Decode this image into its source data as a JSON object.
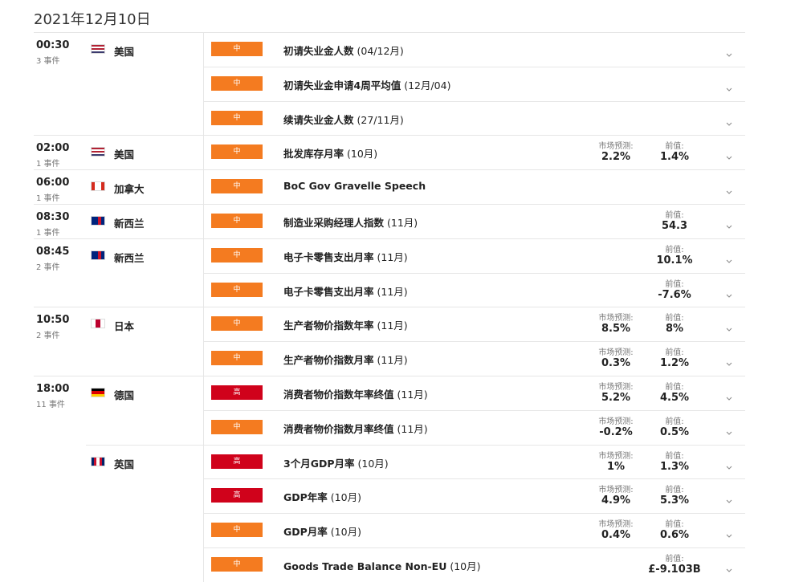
{
  "header": {
    "title": "2021年12月10日"
  },
  "groups": [
    {
      "time": "00:30",
      "count": "3 事件",
      "countries": [
        {
          "name": "美国",
          "flag": {
            "colors": [
              "#b22234",
              "#ffffff",
              "#b22234",
              "#ffffff",
              "#3c3b6e"
            ],
            "direction": "column"
          },
          "events": [
            {
              "importance": {
                "label": "中",
                "color": "#f47b20"
              },
              "name": "初请失业金人数",
              "period": "(04/12月)"
            },
            {
              "importance": {
                "label": "中",
                "color": "#f47b20"
              },
              "name": "初请失业金申请4周平均值",
              "period": "(12月/04)"
            },
            {
              "importance": {
                "label": "中",
                "color": "#f47b20"
              },
              "name": "续请失业金人数",
              "period": "(27/11月)"
            }
          ]
        }
      ]
    },
    {
      "time": "02:00",
      "count": "1 事件",
      "countries": [
        {
          "name": "美国",
          "flag": {
            "colors": [
              "#b22234",
              "#ffffff",
              "#b22234",
              "#ffffff",
              "#3c3b6e"
            ],
            "direction": "column"
          },
          "events": [
            {
              "importance": {
                "label": "中",
                "color": "#f47b20"
              },
              "name": "批发库存月率",
              "period": "(10月)",
              "forecast": {
                "label": "市场预测:",
                "value": "2.2%"
              },
              "previous": {
                "label": "前值:",
                "value": "1.4%"
              }
            }
          ]
        }
      ]
    },
    {
      "time": "06:00",
      "count": "1 事件",
      "countries": [
        {
          "name": "加拿大",
          "flag": {
            "colors": [
              "#d52b1e",
              "#ffffff",
              "#ffffff",
              "#d52b1e"
            ],
            "direction": "row"
          },
          "events": [
            {
              "importance": {
                "label": "中",
                "color": "#f47b20"
              },
              "name": "BoC Gov Gravelle Speech"
            }
          ]
        }
      ]
    },
    {
      "time": "08:30",
      "count": "1 事件",
      "countries": [
        {
          "name": "新西兰",
          "flag": {
            "colors": [
              "#00247d",
              "#00247d",
              "#cc142b",
              "#00247d"
            ],
            "direction": "row"
          },
          "events": [
            {
              "importance": {
                "label": "中",
                "color": "#f47b20"
              },
              "name": "制造业采购经理人指数",
              "period": "(11月)",
              "previous": {
                "label": "前值:",
                "value": "54.3"
              }
            }
          ]
        }
      ]
    },
    {
      "time": "08:45",
      "count": "2 事件",
      "countries": [
        {
          "name": "新西兰",
          "flag": {
            "colors": [
              "#00247d",
              "#00247d",
              "#cc142b",
              "#00247d"
            ],
            "direction": "row"
          },
          "events": [
            {
              "importance": {
                "label": "中",
                "color": "#f47b20"
              },
              "name": "电子卡零售支出月率",
              "period": "(11月)",
              "previous": {
                "label": "前值:",
                "value": "10.1%"
              }
            },
            {
              "importance": {
                "label": "中",
                "color": "#f47b20"
              },
              "name": "电子卡零售支出月率",
              "period": "(11月)",
              "previous": {
                "label": "前值:",
                "value": "-7.6%"
              }
            }
          ]
        }
      ]
    },
    {
      "time": "10:50",
      "count": "2 事件",
      "countries": [
        {
          "name": "日本",
          "flag": {
            "colors": [
              "#ffffff",
              "#bc002d",
              "#ffffff"
            ],
            "direction": "row"
          },
          "events": [
            {
              "importance": {
                "label": "中",
                "color": "#f47b20"
              },
              "name": "生产者物价指数年率",
              "period": "(11月)",
              "forecast": {
                "label": "市场预测:",
                "value": "8.5%"
              },
              "previous": {
                "label": "前值:",
                "value": "8%"
              }
            },
            {
              "importance": {
                "label": "中",
                "color": "#f47b20"
              },
              "name": "生产者物价指数月率",
              "period": "(11月)",
              "forecast": {
                "label": "市场预测:",
                "value": "0.3%"
              },
              "previous": {
                "label": "前值:",
                "value": "1.2%"
              }
            }
          ]
        }
      ]
    },
    {
      "time": "18:00",
      "count": "11 事件",
      "countries": [
        {
          "name": "德国",
          "flag": {
            "colors": [
              "#000000",
              "#dd0000",
              "#ffce00"
            ],
            "direction": "column"
          },
          "events": [
            {
              "importance": {
                "label": "高",
                "color": "#d0021b"
              },
              "name": "消费者物价指数年率终值",
              "period": "(11月)",
              "forecast": {
                "label": "市场预测:",
                "value": "5.2%"
              },
              "previous": {
                "label": "前值:",
                "value": "4.5%"
              }
            },
            {
              "importance": {
                "label": "中",
                "color": "#f47b20"
              },
              "name": "消费者物价指数月率终值",
              "period": "(11月)",
              "forecast": {
                "label": "市场预测:",
                "value": "-0.2%"
              },
              "previous": {
                "label": "前值:",
                "value": "0.5%"
              }
            }
          ]
        },
        {
          "name": "英国",
          "flag": {
            "colors": [
              "#012169",
              "#c8102e",
              "#ffffff",
              "#c8102e",
              "#012169"
            ],
            "direction": "row"
          },
          "events": [
            {
              "importance": {
                "label": "高",
                "color": "#d0021b"
              },
              "name": "3个月GDP月率",
              "period": "(10月)",
              "forecast": {
                "label": "市场预测:",
                "value": "1%"
              },
              "previous": {
                "label": "前值:",
                "value": "1.3%"
              }
            },
            {
              "importance": {
                "label": "高",
                "color": "#d0021b"
              },
              "name": "GDP年率",
              "period": "(10月)",
              "forecast": {
                "label": "市场预测:",
                "value": "4.9%"
              },
              "previous": {
                "label": "前值:",
                "value": "5.3%"
              }
            },
            {
              "importance": {
                "label": "中",
                "color": "#f47b20"
              },
              "name": "GDP月率",
              "period": "(10月)",
              "forecast": {
                "label": "市场预测:",
                "value": "0.4%"
              },
              "previous": {
                "label": "前值:",
                "value": "0.6%"
              }
            },
            {
              "importance": {
                "label": "中",
                "color": "#f47b20"
              },
              "name": "Goods Trade Balance Non-EU",
              "period": "(10月)",
              "previous": {
                "label": "前值:",
                "value": "£-9.103B"
              }
            }
          ]
        }
      ]
    }
  ]
}
